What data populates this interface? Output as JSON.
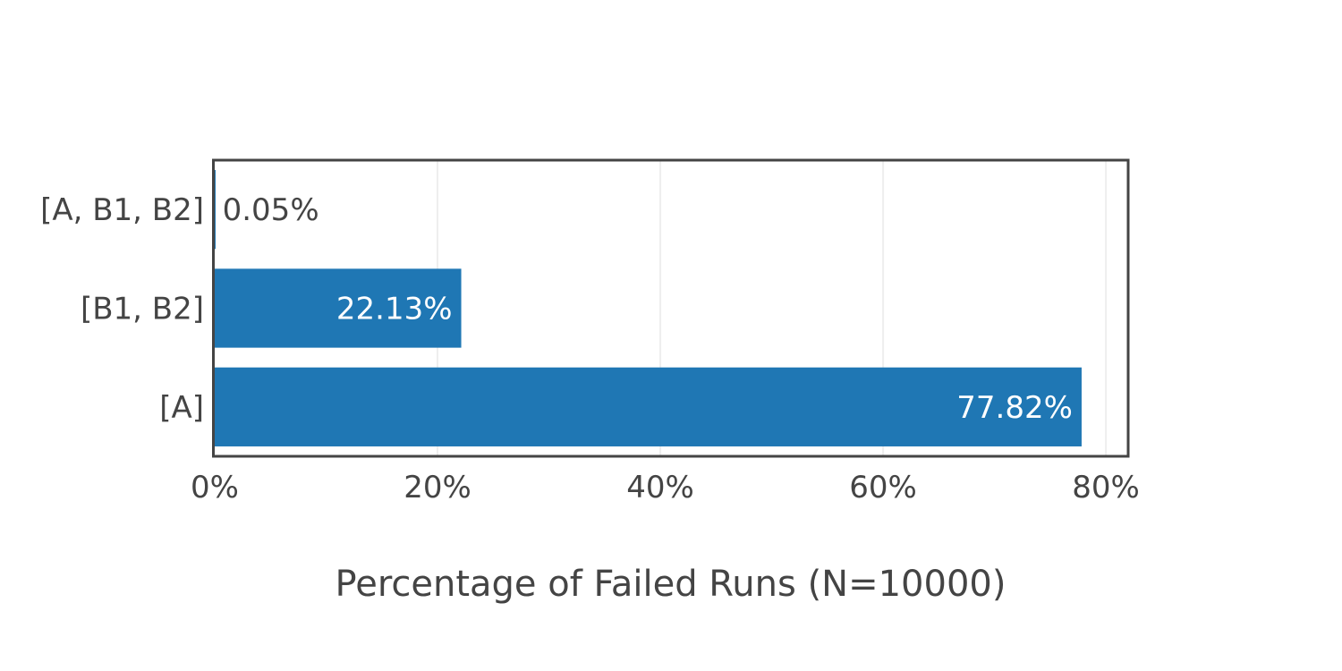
{
  "chart_data": {
    "type": "bar",
    "orientation": "horizontal",
    "title": "",
    "xlabel": "Percentage of Failed Runs (N=10000)",
    "ylabel": "",
    "categories": [
      "[A]",
      "[B1, B2]",
      "[A, B1, B2]"
    ],
    "values": [
      77.82,
      22.13,
      0.05
    ],
    "data_labels": [
      "77.82%",
      "22.13%",
      "0.05%"
    ],
    "xlim": [
      0,
      82
    ],
    "x_ticks": [
      0,
      20,
      40,
      60,
      80
    ],
    "x_tick_labels": [
      "0%",
      "20%",
      "40%",
      "60%",
      "80%"
    ],
    "grid": true,
    "legend": "none",
    "colors": {
      "bar": "#1f77b4",
      "grid": "#eeeeee",
      "frame": "#444444",
      "text": "#444444",
      "label_inside": "#ffffff"
    }
  }
}
